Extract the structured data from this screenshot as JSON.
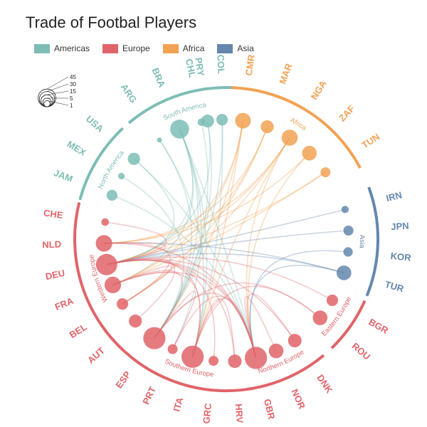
{
  "chart_data": {
    "type": "chord-bubble",
    "title": "Trade of Footbal Players",
    "legend": {
      "placement": "top-left",
      "items": [
        {
          "label": "Americas",
          "color": "#7dbdb6"
        },
        {
          "label": "Europe",
          "color": "#e06469"
        },
        {
          "label": "Africa",
          "color": "#f2a253"
        },
        {
          "label": "Asia",
          "color": "#6487ad"
        }
      ]
    },
    "size_legend": {
      "values": [
        45,
        30,
        15,
        5,
        1
      ]
    },
    "groups": [
      {
        "label": "South America",
        "region": "Americas",
        "countries": [
          "ARG",
          "BRA",
          "CHL",
          "COL",
          "PRY"
        ]
      },
      {
        "label": "North America",
        "region": "Americas",
        "countries": [
          "USA",
          "MEX",
          "JAM"
        ]
      },
      {
        "label": "Africa",
        "region": "Africa",
        "countries": [
          "CMR",
          "MAR",
          "NGA",
          "ZAF",
          "TUN"
        ]
      },
      {
        "label": "Asia",
        "region": "Asia",
        "countries": [
          "IRN",
          "JPN",
          "KOR",
          "TUR"
        ]
      },
      {
        "label": "Eastern Europe",
        "region": "Europe",
        "countries": [
          "BGR",
          "ROU"
        ]
      },
      {
        "label": "Northern Europe",
        "region": "Europe",
        "countries": [
          "DNK",
          "NOR",
          "GBR"
        ]
      },
      {
        "label": "Southern Europe",
        "region": "Europe",
        "countries": [
          "HRV",
          "GRC",
          "ITA",
          "PRT",
          "ESP"
        ]
      },
      {
        "label": "Western Europe",
        "region": "Europe",
        "countries": [
          "AUT",
          "BEL",
          "FRA",
          "DEU",
          "NLD",
          "CHE"
        ]
      }
    ],
    "countries": [
      {
        "code": "ARG",
        "region": "Americas",
        "value": 0
      },
      {
        "code": "BRA",
        "region": "Americas",
        "value": 20
      },
      {
        "code": "CHL",
        "region": "Americas",
        "value": 1
      },
      {
        "code": "COL",
        "region": "Americas",
        "value": 5
      },
      {
        "code": "PRY",
        "region": "Americas",
        "value": 7
      },
      {
        "code": "USA",
        "region": "Americas",
        "value": 6
      },
      {
        "code": "MEX",
        "region": "Americas",
        "value": 0.5
      },
      {
        "code": "JAM",
        "region": "Americas",
        "value": 4
      },
      {
        "code": "CMR",
        "region": "Africa",
        "value": 12
      },
      {
        "code": "MAR",
        "region": "Africa",
        "value": 7
      },
      {
        "code": "NGA",
        "region": "Africa",
        "value": 13
      },
      {
        "code": "ZAF",
        "region": "Africa",
        "value": 10
      },
      {
        "code": "TUN",
        "region": "Africa",
        "value": 3
      },
      {
        "code": "IRN",
        "region": "Asia",
        "value": 0.8
      },
      {
        "code": "JPN",
        "region": "Asia",
        "value": 3
      },
      {
        "code": "KOR",
        "region": "Asia",
        "value": 2.5
      },
      {
        "code": "TUR",
        "region": "Asia",
        "value": 10
      },
      {
        "code": "BGR",
        "region": "Europe",
        "value": 5
      },
      {
        "code": "ROU",
        "region": "Europe",
        "value": 10
      },
      {
        "code": "DNK",
        "region": "Europe",
        "value": 8
      },
      {
        "code": "NOR",
        "region": "Europe",
        "value": 10
      },
      {
        "code": "GBR",
        "region": "Europe",
        "value": 30
      },
      {
        "code": "HRV",
        "region": "Europe",
        "value": 8
      },
      {
        "code": "GRC",
        "region": "Europe",
        "value": 3
      },
      {
        "code": "ITA",
        "region": "Europe",
        "value": 30
      },
      {
        "code": "PRT",
        "region": "Europe",
        "value": 3
      },
      {
        "code": "ESP",
        "region": "Europe",
        "value": 30
      },
      {
        "code": "AUT",
        "region": "Europe",
        "value": 7
      },
      {
        "code": "BEL",
        "region": "Europe",
        "value": 5
      },
      {
        "code": "FRA",
        "region": "Europe",
        "value": 14
      },
      {
        "code": "DEU",
        "region": "Europe",
        "value": 27
      },
      {
        "code": "NLD",
        "region": "Europe",
        "value": 14
      },
      {
        "code": "CHE",
        "region": "Europe",
        "value": 1
      }
    ],
    "links": [
      [
        "BRA",
        "ESP"
      ],
      [
        "BRA",
        "ITA"
      ],
      [
        "BRA",
        "DEU"
      ],
      [
        "BRA",
        "PRT"
      ],
      [
        "BRA",
        "FRA"
      ],
      [
        "BRA",
        "GBR"
      ],
      [
        "ARG",
        "ESP"
      ],
      [
        "ARG",
        "ITA"
      ],
      [
        "CHL",
        "ESP"
      ],
      [
        "COL",
        "ESP"
      ],
      [
        "COL",
        "ITA"
      ],
      [
        "PRY",
        "ESP"
      ],
      [
        "PRY",
        "DEU"
      ],
      [
        "USA",
        "GBR"
      ],
      [
        "USA",
        "DEU"
      ],
      [
        "MEX",
        "ESP"
      ],
      [
        "JAM",
        "GBR"
      ],
      [
        "CMR",
        "FRA"
      ],
      [
        "CMR",
        "DEU"
      ],
      [
        "CMR",
        "ESP"
      ],
      [
        "CMR",
        "ITA"
      ],
      [
        "MAR",
        "FRA"
      ],
      [
        "MAR",
        "NLD"
      ],
      [
        "MAR",
        "BEL"
      ],
      [
        "NGA",
        "GBR"
      ],
      [
        "NGA",
        "DEU"
      ],
      [
        "NGA",
        "ITA"
      ],
      [
        "NGA",
        "NLD"
      ],
      [
        "NGA",
        "BEL"
      ],
      [
        "ZAF",
        "GBR"
      ],
      [
        "ZAF",
        "NLD"
      ],
      [
        "TUN",
        "FRA"
      ],
      [
        "TUN",
        "DEU"
      ],
      [
        "IRN",
        "DEU"
      ],
      [
        "JPN",
        "DEU"
      ],
      [
        "KOR",
        "GBR"
      ],
      [
        "TUR",
        "DEU"
      ],
      [
        "TUR",
        "NLD"
      ],
      [
        "TUR",
        "GBR"
      ],
      [
        "BGR",
        "DEU"
      ],
      [
        "ROU",
        "ITA"
      ],
      [
        "ROU",
        "ESP"
      ],
      [
        "DNK",
        "GBR"
      ],
      [
        "DNK",
        "DEU"
      ],
      [
        "NOR",
        "GBR"
      ],
      [
        "HRV",
        "DEU"
      ],
      [
        "HRV",
        "ITA"
      ],
      [
        "GRC",
        "DEU"
      ],
      [
        "PRT",
        "ESP"
      ],
      [
        "PRT",
        "GBR"
      ],
      [
        "ESP",
        "GBR"
      ],
      [
        "ITA",
        "GBR"
      ],
      [
        "AUT",
        "DEU"
      ],
      [
        "BEL",
        "NLD"
      ],
      [
        "BEL",
        "FRA"
      ],
      [
        "FRA",
        "GBR"
      ],
      [
        "FRA",
        "ESP"
      ],
      [
        "DEU",
        "ITA"
      ],
      [
        "NLD",
        "GBR"
      ],
      [
        "CHE",
        "DEU"
      ],
      [
        "NLD",
        "DEU"
      ],
      [
        "DEU",
        "GBR"
      ],
      [
        "FRA",
        "ITA"
      ]
    ]
  }
}
